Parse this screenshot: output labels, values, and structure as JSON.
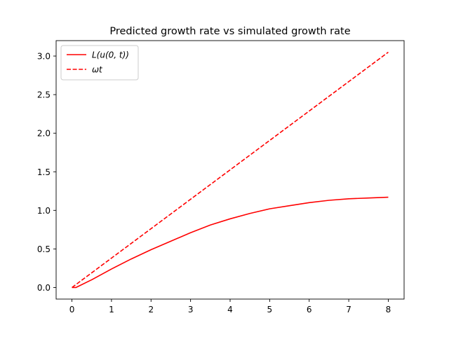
{
  "chart_data": {
    "type": "line",
    "title": "Predicted growth rate vs simulated growth rate",
    "xlabel": "",
    "ylabel": "",
    "xlim": [
      -0.4,
      8.4
    ],
    "ylim": [
      -0.15,
      3.2
    ],
    "xticks": [
      0,
      1,
      2,
      3,
      4,
      5,
      6,
      7,
      8
    ],
    "xtick_labels": [
      "0",
      "1",
      "2",
      "3",
      "4",
      "5",
      "6",
      "7",
      "8"
    ],
    "yticks": [
      0.0,
      0.5,
      1.0,
      1.5,
      2.0,
      2.5,
      3.0
    ],
    "ytick_labels": [
      "0.0",
      "0.5",
      "1.0",
      "1.5",
      "2.0",
      "2.5",
      "3.0"
    ],
    "grid": false,
    "legend_position": "top-left",
    "series": [
      {
        "name": "L(u(0, t))",
        "color": "#ff0000",
        "style": "solid",
        "x": [
          0,
          0.1,
          0.5,
          1,
          1.5,
          2,
          2.5,
          3,
          3.5,
          4,
          4.5,
          5,
          5.5,
          6,
          6.5,
          7,
          7.5,
          8
        ],
        "y": [
          0.0,
          0.0,
          0.1,
          0.24,
          0.37,
          0.49,
          0.6,
          0.71,
          0.81,
          0.89,
          0.96,
          1.02,
          1.06,
          1.1,
          1.13,
          1.15,
          1.16,
          1.17
        ]
      },
      {
        "name": "ωt",
        "color": "#ff0000",
        "style": "dashed",
        "x": [
          0,
          8
        ],
        "y": [
          0.0,
          3.05
        ]
      }
    ]
  }
}
